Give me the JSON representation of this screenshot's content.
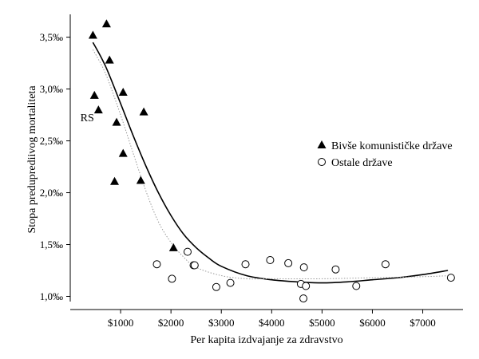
{
  "chart_data": {
    "type": "scatter",
    "xlabel": "Per kapita izdvajanje za zdravstvo",
    "ylabel": "Stopa preduprediivog mortaliteta",
    "xlim": [
      0,
      7800
    ],
    "ylim": [
      0.95,
      3.72
    ],
    "x_ticks": [
      {
        "value": 1000,
        "label": "$1000"
      },
      {
        "value": 2000,
        "label": "$2000"
      },
      {
        "value": 3000,
        "label": "$3000"
      },
      {
        "value": 4000,
        "label": "$4000"
      },
      {
        "value": 5000,
        "label": "$5000"
      },
      {
        "value": 6000,
        "label": "$6000"
      },
      {
        "value": 7000,
        "label": "$7000"
      }
    ],
    "y_ticks": [
      {
        "value": 1.0,
        "label": "1,0‰"
      },
      {
        "value": 1.5,
        "label": "1,5‰"
      },
      {
        "value": 2.0,
        "label": "2,0‰"
      },
      {
        "value": 2.5,
        "label": "2,5‰"
      },
      {
        "value": 3.0,
        "label": "3,0‰"
      },
      {
        "value": 3.5,
        "label": "3,5‰"
      }
    ],
    "legend_position": "right",
    "series": [
      {
        "name": "Bivše komunističke države",
        "marker": "triangle",
        "color": "#000000",
        "points": [
          {
            "x": 450,
            "y": 3.52
          },
          {
            "x": 720,
            "y": 3.63
          },
          {
            "x": 780,
            "y": 3.28
          },
          {
            "x": 480,
            "y": 2.94
          },
          {
            "x": 560,
            "y": 2.8
          },
          {
            "x": 1050,
            "y": 2.97
          },
          {
            "x": 1460,
            "y": 2.78
          },
          {
            "x": 920,
            "y": 2.68
          },
          {
            "x": 1050,
            "y": 2.38
          },
          {
            "x": 880,
            "y": 2.11
          },
          {
            "x": 1400,
            "y": 2.12
          },
          {
            "x": 2050,
            "y": 1.47
          }
        ]
      },
      {
        "name": "Ostale države",
        "marker": "circle-open",
        "color": "#000000",
        "points": [
          {
            "x": 1720,
            "y": 1.31
          },
          {
            "x": 2020,
            "y": 1.17
          },
          {
            "x": 2330,
            "y": 1.43
          },
          {
            "x": 2450,
            "y": 1.3
          },
          {
            "x": 2470,
            "y": 1.3
          },
          {
            "x": 2900,
            "y": 1.09
          },
          {
            "x": 3180,
            "y": 1.13
          },
          {
            "x": 3480,
            "y": 1.31
          },
          {
            "x": 3970,
            "y": 1.35
          },
          {
            "x": 4330,
            "y": 1.32
          },
          {
            "x": 4580,
            "y": 1.12
          },
          {
            "x": 4640,
            "y": 1.28
          },
          {
            "x": 4680,
            "y": 1.1
          },
          {
            "x": 4630,
            "y": 0.98
          },
          {
            "x": 5270,
            "y": 1.26
          },
          {
            "x": 5680,
            "y": 1.1
          },
          {
            "x": 6260,
            "y": 1.31
          },
          {
            "x": 7560,
            "y": 1.18
          }
        ]
      }
    ],
    "fit_curves": [
      {
        "style": "solid",
        "color": "#000000",
        "points": [
          {
            "x": 450,
            "y": 3.45
          },
          {
            "x": 700,
            "y": 3.22
          },
          {
            "x": 1000,
            "y": 2.86
          },
          {
            "x": 1250,
            "y": 2.55
          },
          {
            "x": 1500,
            "y": 2.26
          },
          {
            "x": 1750,
            "y": 2.0
          },
          {
            "x": 2000,
            "y": 1.78
          },
          {
            "x": 2250,
            "y": 1.6
          },
          {
            "x": 2500,
            "y": 1.47
          },
          {
            "x": 2750,
            "y": 1.37
          },
          {
            "x": 3000,
            "y": 1.29
          },
          {
            "x": 3500,
            "y": 1.2
          },
          {
            "x": 4000,
            "y": 1.16
          },
          {
            "x": 4500,
            "y": 1.14
          },
          {
            "x": 5000,
            "y": 1.13
          },
          {
            "x": 5500,
            "y": 1.14
          },
          {
            "x": 6000,
            "y": 1.16
          },
          {
            "x": 6500,
            "y": 1.18
          },
          {
            "x": 7000,
            "y": 1.21
          },
          {
            "x": 7500,
            "y": 1.25
          }
        ]
      },
      {
        "style": "dotted",
        "color": "#999999",
        "points": [
          {
            "x": 450,
            "y": 3.38
          },
          {
            "x": 700,
            "y": 3.15
          },
          {
            "x": 1000,
            "y": 2.75
          },
          {
            "x": 1250,
            "y": 2.38
          },
          {
            "x": 1500,
            "y": 2.02
          },
          {
            "x": 1750,
            "y": 1.72
          },
          {
            "x": 2000,
            "y": 1.52
          },
          {
            "x": 2250,
            "y": 1.38
          },
          {
            "x": 2500,
            "y": 1.28
          },
          {
            "x": 3000,
            "y": 1.2
          },
          {
            "x": 3500,
            "y": 1.17
          },
          {
            "x": 4000,
            "y": 1.17
          },
          {
            "x": 5000,
            "y": 1.17
          },
          {
            "x": 6000,
            "y": 1.18
          },
          {
            "x": 7000,
            "y": 1.19
          },
          {
            "x": 7550,
            "y": 1.2
          }
        ]
      }
    ],
    "annotations": [
      {
        "text": "RS",
        "x": 200,
        "y": 2.69
      }
    ]
  }
}
